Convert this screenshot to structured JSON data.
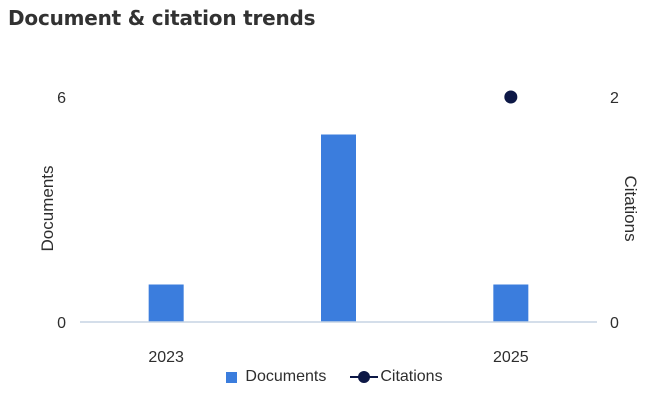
{
  "chart_data": {
    "type": "bar",
    "title": "Document & citation trends",
    "categories": [
      "2023",
      "",
      "2025"
    ],
    "series": [
      {
        "name": "Documents",
        "type": "bar",
        "axis": "left",
        "values": [
          1,
          5,
          1
        ]
      },
      {
        "name": "Citations",
        "type": "line",
        "axis": "right",
        "values": [
          null,
          null,
          2
        ]
      }
    ],
    "y_left": {
      "label": "Documents",
      "range": [
        0,
        6
      ],
      "ticks": [
        "0",
        "6"
      ]
    },
    "y_right": {
      "label": "Citations",
      "range": [
        0,
        2
      ],
      "ticks": [
        "0",
        "2"
      ]
    },
    "grid": false,
    "legend": "bottom-center",
    "colors": {
      "bar": "#3b7ddd",
      "line": "#0d1846",
      "baseline": "#c6d4e4"
    }
  }
}
